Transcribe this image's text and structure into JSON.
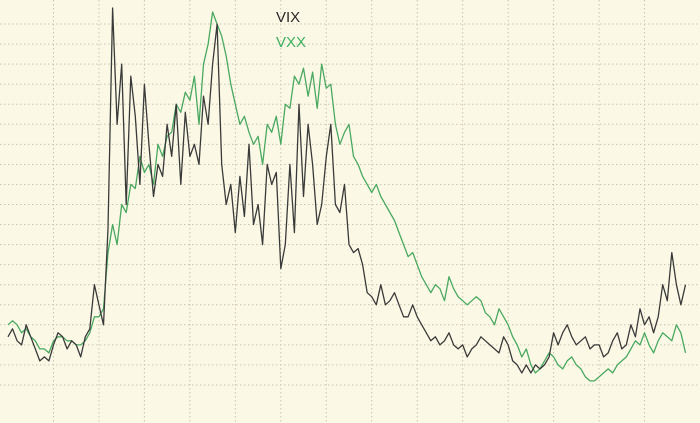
{
  "chart_data": {
    "type": "line",
    "title": "",
    "xlabel": "",
    "ylabel": "",
    "grid": true,
    "legend_position": "top-center",
    "background_color": "#fbf9e6",
    "grid_color": "#c9c6b0",
    "xlim": [
      0,
      150
    ],
    "ylim": [
      0,
      100
    ],
    "x_grid_step": 10,
    "y_grid_step": 5,
    "series": [
      {
        "name": "VIX",
        "color": "#3a3a3a",
        "x": [
          0,
          1,
          2,
          3,
          4,
          5,
          6,
          7,
          8,
          9,
          10,
          11,
          12,
          13,
          14,
          15,
          16,
          17,
          18,
          19,
          20,
          21,
          22,
          23,
          24,
          25,
          26,
          27,
          28,
          29,
          30,
          31,
          32,
          33,
          34,
          35,
          36,
          37,
          38,
          39,
          40,
          41,
          42,
          43,
          44,
          45,
          46,
          47,
          48,
          49,
          50,
          51,
          52,
          53,
          54,
          55,
          56,
          57,
          58,
          59,
          60,
          61,
          62,
          63,
          64,
          65,
          66,
          67,
          68,
          69,
          70,
          71,
          72,
          73,
          74,
          75,
          76,
          77,
          78,
          79,
          80,
          81,
          82,
          83,
          84,
          85,
          86,
          87,
          88,
          89,
          90,
          91,
          92,
          93,
          94,
          95,
          96,
          97,
          98,
          99,
          100,
          101,
          102,
          103,
          104,
          105,
          106,
          107,
          108,
          109,
          110,
          111,
          112,
          113,
          114,
          115,
          116,
          117,
          118,
          119,
          120,
          121,
          122,
          123,
          124,
          125,
          126,
          127,
          128,
          129,
          130,
          131,
          132,
          133,
          134,
          135,
          136,
          137,
          138,
          139,
          140,
          141,
          142,
          143,
          144,
          145,
          146,
          147,
          148,
          149
        ],
        "values": [
          17,
          19,
          16,
          15,
          20,
          17,
          14,
          11,
          12,
          11,
          15,
          18,
          17,
          14,
          16,
          15,
          12,
          17,
          19,
          30,
          25,
          20,
          44,
          99,
          70,
          85,
          50,
          82,
          72,
          55,
          80,
          65,
          52,
          60,
          57,
          70,
          62,
          75,
          55,
          73,
          62,
          65,
          60,
          77,
          70,
          85,
          95,
          60,
          50,
          55,
          43,
          57,
          47,
          65,
          45,
          50,
          40,
          60,
          55,
          58,
          34,
          40,
          60,
          43,
          75,
          52,
          70,
          60,
          45,
          50,
          62,
          70,
          50,
          48,
          55,
          40,
          38,
          39,
          35,
          28,
          27,
          25,
          30,
          25,
          26,
          28,
          25,
          22,
          22,
          25,
          22,
          20,
          18,
          16,
          17,
          15,
          16,
          18,
          15,
          14,
          15,
          12,
          14,
          15,
          17,
          16,
          15,
          14,
          13,
          17,
          15,
          11,
          10,
          8,
          10,
          8,
          10,
          9,
          10,
          12,
          18,
          15,
          18,
          20,
          17,
          15,
          16,
          17,
          14,
          15,
          15,
          12,
          13,
          16,
          18,
          14,
          15,
          20,
          17,
          24,
          20,
          22,
          18,
          22,
          30,
          26,
          38,
          30,
          25,
          30
        ]
      },
      {
        "name": "VXX",
        "color": "#4aa860",
        "x": [
          0,
          1,
          2,
          3,
          4,
          5,
          6,
          7,
          8,
          9,
          10,
          11,
          12,
          13,
          14,
          15,
          16,
          17,
          18,
          19,
          20,
          21,
          22,
          23,
          24,
          25,
          26,
          27,
          28,
          29,
          30,
          31,
          32,
          33,
          34,
          35,
          36,
          37,
          38,
          39,
          40,
          41,
          42,
          43,
          44,
          45,
          46,
          47,
          48,
          49,
          50,
          51,
          52,
          53,
          54,
          55,
          56,
          57,
          58,
          59,
          60,
          61,
          62,
          63,
          64,
          65,
          66,
          67,
          68,
          69,
          70,
          71,
          72,
          73,
          74,
          75,
          76,
          77,
          78,
          79,
          80,
          81,
          82,
          83,
          84,
          85,
          86,
          87,
          88,
          89,
          90,
          91,
          92,
          93,
          94,
          95,
          96,
          97,
          98,
          99,
          100,
          101,
          102,
          103,
          104,
          105,
          106,
          107,
          108,
          109,
          110,
          111,
          112,
          113,
          114,
          115,
          116,
          117,
          118,
          119,
          120,
          121,
          122,
          123,
          124,
          125,
          126,
          127,
          128,
          129,
          130,
          131,
          132,
          133,
          134,
          135,
          136,
          137,
          138,
          139,
          140,
          141,
          142,
          143,
          144,
          145,
          146,
          147,
          148,
          149
        ],
        "values": [
          20,
          21,
          20,
          18,
          19,
          17,
          16,
          14,
          14,
          13,
          16,
          17,
          17,
          16,
          16,
          15,
          15,
          16,
          18,
          22,
          22,
          24,
          38,
          45,
          40,
          50,
          48,
          55,
          54,
          62,
          58,
          60,
          55,
          65,
          62,
          67,
          68,
          75,
          73,
          78,
          76,
          82,
          70,
          85,
          90,
          98,
          95,
          92,
          87,
          80,
          75,
          70,
          72,
          68,
          65,
          67,
          60,
          70,
          68,
          72,
          65,
          75,
          74,
          82,
          80,
          84,
          77,
          83,
          74,
          85,
          79,
          80,
          70,
          65,
          68,
          70,
          62,
          60,
          57,
          55,
          53,
          55,
          52,
          50,
          48,
          46,
          43,
          40,
          37,
          38,
          35,
          32,
          30,
          28,
          30,
          29,
          26,
          32,
          29,
          27,
          26,
          25,
          26,
          27,
          26,
          23,
          22,
          20,
          24,
          22,
          20,
          17,
          15,
          12,
          14,
          10,
          8,
          9,
          11,
          13,
          12,
          10,
          9,
          11,
          12,
          10,
          9,
          7,
          6,
          6,
          7,
          8,
          9,
          8,
          10,
          11,
          12,
          14,
          16,
          15,
          18,
          15,
          13,
          16,
          18,
          17,
          16,
          20,
          18,
          13
        ]
      }
    ]
  }
}
